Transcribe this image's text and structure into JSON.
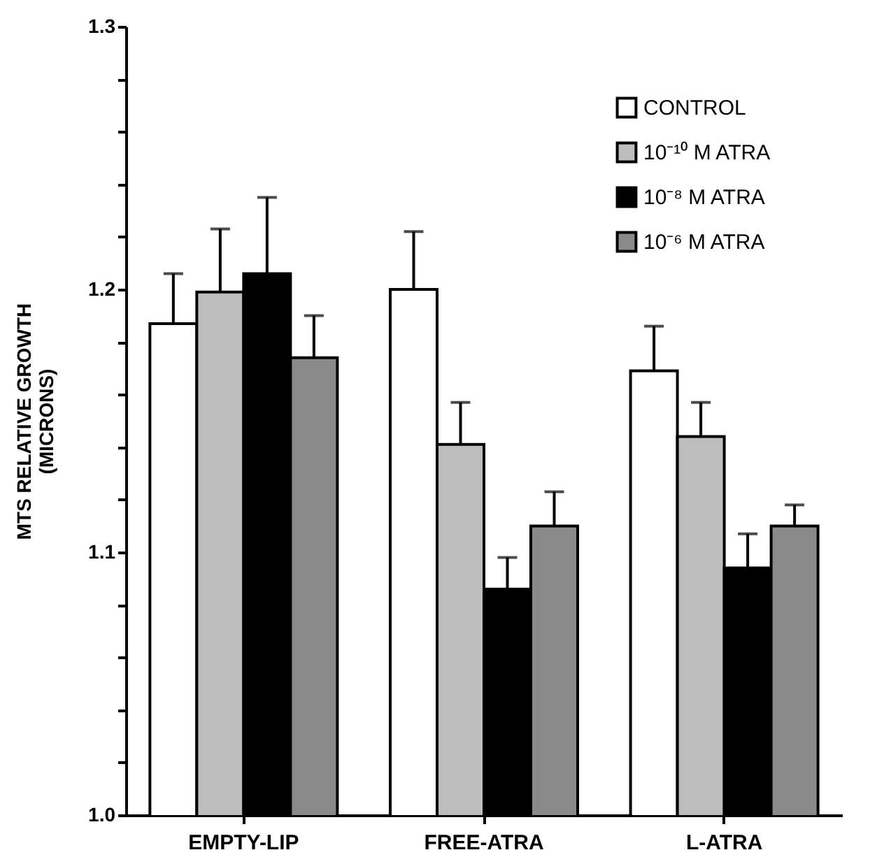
{
  "chart_data": {
    "type": "bar",
    "ylabel": "MTS RELATIVE GROWTH\n(MICRONS)",
    "categories": [
      "EMPTY-LIP",
      "FREE-ATRA",
      "L-ATRA"
    ],
    "series": [
      {
        "name": "CONTROL",
        "color": "#ffffff",
        "values": [
          1.187,
          1.2,
          1.169
        ],
        "errors": [
          [
            1.187,
            1.206
          ],
          [
            1.2,
            1.222
          ],
          [
            1.169,
            1.186
          ]
        ]
      },
      {
        "name": "10⁻¹⁰ M ATRA",
        "color": "#bdbdbd",
        "values": [
          1.199,
          1.141,
          1.144
        ],
        "errors": [
          [
            1.199,
            1.223
          ],
          [
            1.141,
            1.157
          ],
          [
            1.144,
            1.157
          ]
        ]
      },
      {
        "name": "10⁻⁸ M ATRA",
        "color": "#000000",
        "values": [
          1.206,
          1.086,
          1.094
        ],
        "errors": [
          [
            1.206,
            1.235
          ],
          [
            1.086,
            1.098
          ],
          [
            1.094,
            1.107
          ]
        ]
      },
      {
        "name": "10⁻⁶ M ATRA",
        "color": "#8a8a8a",
        "values": [
          1.174,
          1.11,
          1.11
        ],
        "errors": [
          [
            1.174,
            1.19
          ],
          [
            1.11,
            1.123
          ],
          [
            1.11,
            1.118
          ]
        ]
      }
    ],
    "ylim": [
      1.0,
      1.3
    ],
    "yticks": [
      {
        "value": 1.0,
        "label": "1.0"
      },
      {
        "value": 1.02,
        "label": null
      },
      {
        "value": 1.04,
        "label": null
      },
      {
        "value": 1.06,
        "label": null
      },
      {
        "value": 1.08,
        "label": null
      },
      {
        "value": 1.1,
        "label": "1.1"
      },
      {
        "value": 1.12,
        "label": null
      },
      {
        "value": 1.14,
        "label": null
      },
      {
        "value": 1.16,
        "label": null
      },
      {
        "value": 1.18,
        "label": null
      },
      {
        "value": 1.2,
        "label": "1.2"
      },
      {
        "value": 1.22,
        "label": null
      },
      {
        "value": 1.24,
        "label": null
      },
      {
        "value": 1.26,
        "label": null
      },
      {
        "value": 1.28,
        "label": null
      },
      {
        "value": 1.3,
        "label": "1.3"
      }
    ],
    "legend": "top right",
    "grid": false
  }
}
